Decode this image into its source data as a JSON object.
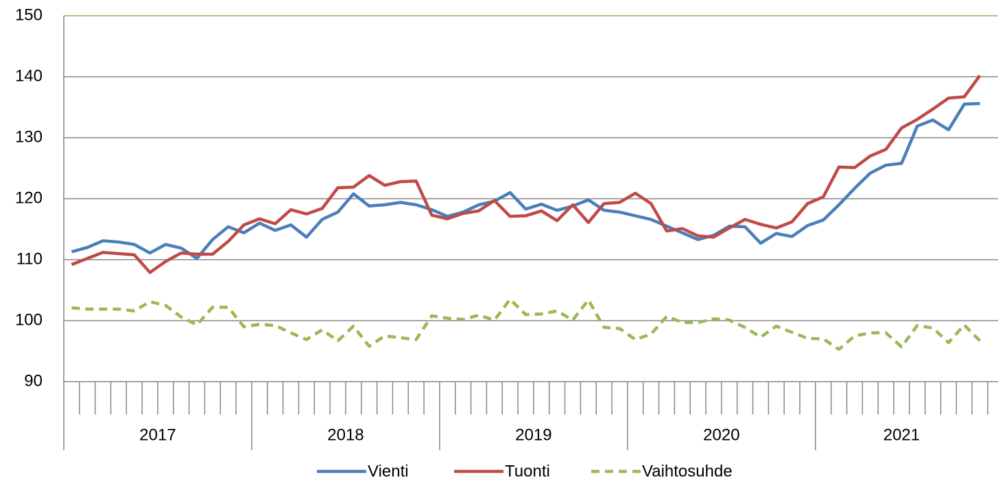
{
  "chart_data": {
    "type": "line",
    "categories": [
      null,
      null,
      null,
      null,
      null,
      null,
      null,
      null,
      null,
      null,
      null,
      null,
      null,
      null,
      null,
      null,
      null,
      null,
      null,
      null,
      null,
      null,
      null,
      null,
      null,
      null,
      null,
      null,
      null,
      null,
      null,
      null,
      null,
      null,
      null,
      null,
      null,
      null,
      null,
      null,
      null,
      null,
      null,
      null,
      null,
      null,
      null,
      null,
      null,
      null,
      null,
      null,
      null,
      null,
      null,
      null,
      null,
      null,
      null
    ],
    "groups": [
      {
        "label": "2017",
        "count": 12
      },
      {
        "label": "2018",
        "count": 12
      },
      {
        "label": "2019",
        "count": 12
      },
      {
        "label": "2020",
        "count": 12
      },
      {
        "label": "2021",
        "count": 11
      }
    ],
    "series": [
      {
        "name": "Vienti",
        "color": "#4a7ebb",
        "dashed": false,
        "values": [
          111.3,
          112.0,
          113.1,
          112.9,
          112.5,
          111.1,
          112.5,
          111.9,
          110.2,
          113.3,
          115.4,
          114.4,
          116.0,
          114.8,
          115.7,
          113.7,
          116.6,
          117.8,
          120.8,
          118.8,
          119.0,
          119.4,
          119.0,
          118.2,
          117.1,
          117.8,
          119.0,
          119.6,
          121.0,
          118.3,
          119.1,
          118.1,
          118.8,
          119.8,
          118.1,
          117.8,
          117.2,
          116.6,
          115.5,
          114.4,
          113.3,
          114.0,
          115.5,
          115.4,
          112.7,
          114.3,
          113.8,
          115.6,
          116.5,
          119.0,
          121.7,
          124.2,
          125.5,
          125.8,
          131.9,
          132.9,
          131.3,
          135.5,
          135.6
        ]
      },
      {
        "name": "Tuonti",
        "color": "#be4b48",
        "dashed": false,
        "values": [
          109.2,
          110.2,
          111.2,
          111.0,
          110.8,
          107.9,
          109.7,
          111.1,
          110.9,
          110.9,
          113.0,
          115.7,
          116.7,
          115.9,
          118.2,
          117.5,
          118.4,
          121.8,
          121.9,
          123.8,
          122.2,
          122.8,
          122.9,
          117.3,
          116.7,
          117.6,
          118.0,
          119.7,
          117.1,
          117.2,
          118.0,
          116.4,
          119.0,
          116.1,
          119.2,
          119.4,
          120.9,
          119.2,
          114.7,
          115.1,
          113.9,
          113.7,
          115.2,
          116.6,
          115.8,
          115.2,
          116.2,
          119.2,
          120.3,
          125.2,
          125.1,
          127.0,
          128.1,
          131.6,
          133.0,
          134.7,
          136.5,
          136.7,
          140.2
        ]
      },
      {
        "name": "Vaihtosuhde",
        "color": "#98b954",
        "dashed": true,
        "values": [
          102.1,
          101.9,
          101.9,
          101.9,
          101.6,
          103.1,
          102.5,
          100.6,
          99.3,
          102.2,
          102.2,
          99.0,
          99.4,
          99.2,
          98.0,
          96.9,
          98.5,
          96.7,
          99.1,
          95.8,
          97.5,
          97.2,
          96.9,
          100.8,
          100.4,
          100.2,
          100.9,
          100.1,
          103.5,
          101.0,
          101.1,
          101.6,
          100.1,
          103.4,
          98.9,
          98.7,
          96.9,
          97.8,
          100.7,
          99.7,
          99.7,
          100.3,
          100.1,
          98.9,
          97.3,
          99.1,
          98.1,
          97.1,
          97.0,
          95.3,
          97.5,
          98.0,
          98.0,
          95.7,
          99.2,
          98.8,
          96.4,
          99.3,
          96.7
        ]
      }
    ],
    "ylim": [
      90,
      150
    ],
    "yticks": [
      90,
      100,
      110,
      120,
      130,
      140,
      150
    ],
    "grid": true,
    "legend": "bottom"
  }
}
